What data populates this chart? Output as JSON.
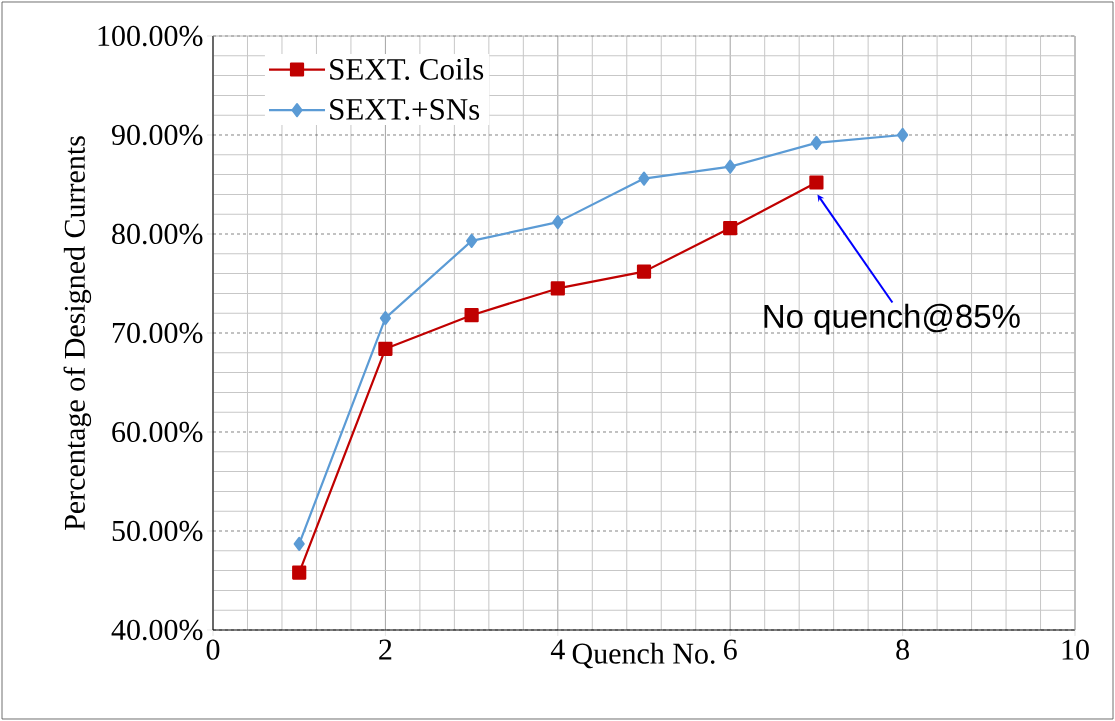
{
  "chart_data": {
    "type": "line",
    "xlabel": "Quench No.",
    "ylabel": "Percentage of Designed Currents",
    "series": [
      {
        "name": "SEXT. Coils",
        "color": "#c00000",
        "marker": "square",
        "x": [
          1,
          2,
          3,
          4,
          5,
          6,
          7
        ],
        "values": [
          45.8,
          68.4,
          71.8,
          74.5,
          76.2,
          80.6,
          85.2
        ]
      },
      {
        "name": "SEXT.+SNs",
        "color": "#5b9bd5",
        "marker": "diamond",
        "x": [
          1,
          2,
          3,
          4,
          5,
          6,
          7,
          8
        ],
        "values": [
          48.7,
          71.5,
          79.3,
          81.2,
          85.6,
          86.8,
          89.2,
          90.0
        ]
      }
    ],
    "xlim": [
      0,
      10
    ],
    "xticks": [
      0,
      2,
      4,
      6,
      8,
      10
    ],
    "ylim": [
      40,
      100
    ],
    "yticks": [
      {
        "value": 40,
        "label": "40.00%"
      },
      {
        "value": 50,
        "label": "50.00%"
      },
      {
        "value": 60,
        "label": "60.00%"
      },
      {
        "value": 70,
        "label": "70.00%"
      },
      {
        "value": 80,
        "label": "80.00%"
      },
      {
        "value": 90,
        "label": "90.00%"
      },
      {
        "value": 100,
        "label": "100.00%"
      }
    ],
    "grid": true,
    "legend": "top left",
    "line_style": "solid",
    "annotations": [
      "No quench@85%"
    ]
  }
}
